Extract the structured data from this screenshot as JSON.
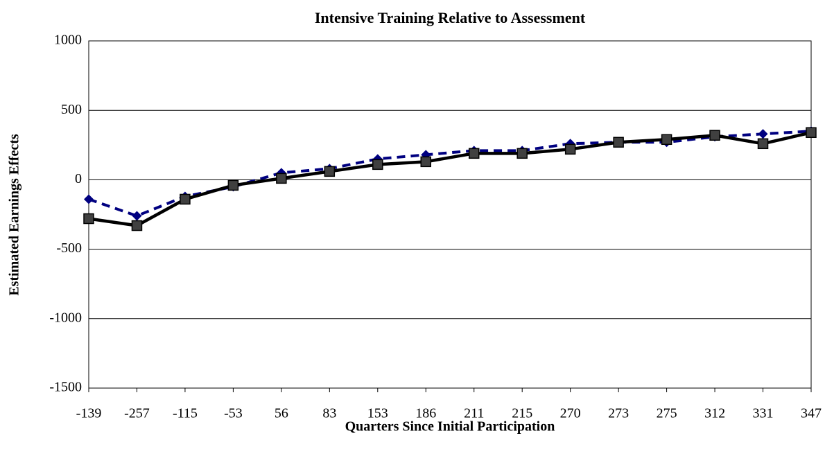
{
  "chart_data": {
    "type": "line",
    "title": "Intensive Training Relative to Assessment",
    "x_label": "Quarters Since Initial Participation",
    "y_label": "Estimated Earnings Effects",
    "categories": [
      "-139",
      "-257",
      "-115",
      "-53",
      "56",
      "83",
      "153",
      "186",
      "211",
      "215",
      "270",
      "273",
      "275",
      "312",
      "331",
      "347"
    ],
    "series": [
      {
        "color": "#000080",
        "linestyle": "dashed",
        "marker": "diamond",
        "values": [
          -140,
          -260,
          -120,
          -50,
          50,
          80,
          150,
          180,
          210,
          210,
          260,
          270,
          270,
          310,
          330,
          350
        ]
      },
      {
        "color": "#000000",
        "linestyle": "solid",
        "marker": "square",
        "values": [
          -280,
          -330,
          -140,
          -40,
          10,
          60,
          110,
          130,
          190,
          190,
          220,
          270,
          290,
          320,
          260,
          340
        ]
      }
    ],
    "ylim": [
      -1500,
      1000
    ],
    "yticks": [
      -1500,
      -1000,
      -500,
      0,
      500,
      1000
    ],
    "grid": true
  }
}
